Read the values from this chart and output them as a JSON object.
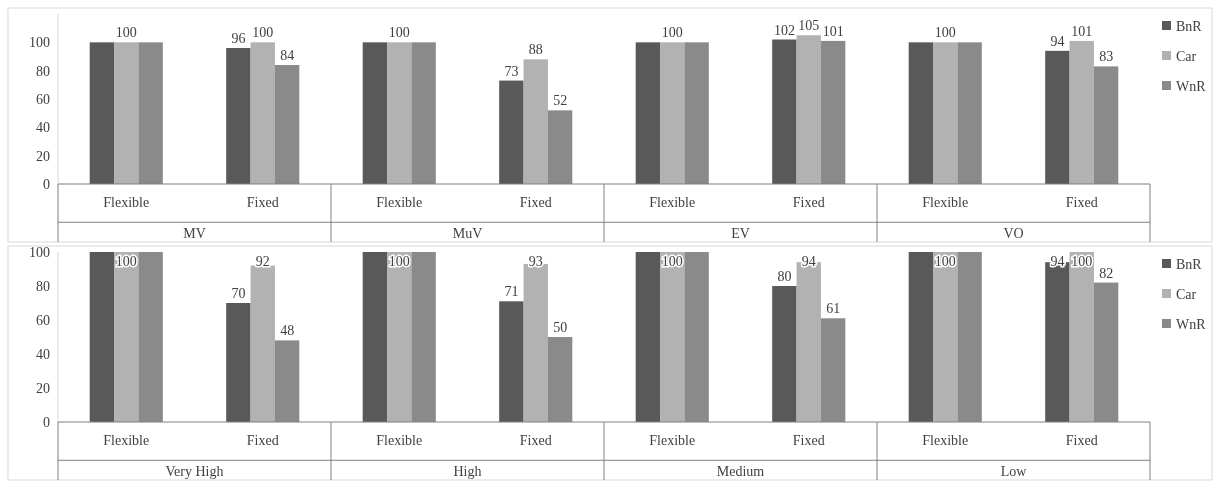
{
  "chart_data": [
    {
      "type": "bar",
      "categories": [
        "Flexible",
        "Fixed",
        "Flexible",
        "Fixed",
        "Flexible",
        "Fixed",
        "Flexible",
        "Fixed"
      ],
      "annotations": [
        "MV",
        "MuV",
        "EV",
        "VO"
      ],
      "ylim": [
        0,
        120
      ],
      "yticks": [
        0,
        20,
        40,
        60,
        80,
        100
      ],
      "legend": "right",
      "series": [
        {
          "name": "BnR",
          "color": "#595959",
          "values": [
            100,
            96,
            100,
            73,
            100,
            102,
            100,
            94
          ],
          "value_labels": [
            null,
            "96",
            null,
            "73",
            null,
            "102",
            null,
            "94"
          ]
        },
        {
          "name": "Car",
          "color": "#b2b2b2",
          "values": [
            100,
            100,
            100,
            88,
            100,
            105,
            100,
            101
          ],
          "value_labels": [
            "100",
            "100",
            "100",
            "88",
            "100",
            "105",
            "100",
            "101"
          ]
        },
        {
          "name": "WnR",
          "color": "#8a8a8a",
          "values": [
            100,
            84,
            100,
            52,
            100,
            101,
            100,
            83
          ],
          "value_labels": [
            null,
            "84",
            null,
            "52",
            null,
            "101",
            null,
            "83"
          ]
        }
      ]
    },
    {
      "type": "bar",
      "categories": [
        "Flexible",
        "Fixed",
        "Flexible",
        "Fixed",
        "Flexible",
        "Fixed",
        "Flexible",
        "Fixed"
      ],
      "annotations": [
        "Very High",
        "High",
        "Medium",
        "Low"
      ],
      "ylim": [
        0,
        100
      ],
      "yticks": [
        0,
        20,
        40,
        60,
        80,
        100
      ],
      "legend": "right",
      "series": [
        {
          "name": "BnR",
          "color": "#595959",
          "values": [
            100,
            70,
            100,
            71,
            100,
            80,
            100,
            94
          ],
          "value_labels": [
            null,
            "70",
            null,
            "71",
            null,
            "80",
            null,
            "94"
          ]
        },
        {
          "name": "Car",
          "color": "#b2b2b2",
          "values": [
            100,
            92,
            100,
            93,
            100,
            94,
            100,
            100
          ],
          "value_labels": [
            "100",
            "92",
            "100",
            "93",
            "100",
            "94",
            "100",
            "100"
          ]
        },
        {
          "name": "WnR",
          "color": "#8a8a8a",
          "values": [
            100,
            48,
            100,
            50,
            100,
            61,
            100,
            82
          ],
          "value_labels": [
            null,
            "48",
            null,
            "50",
            null,
            "61",
            null,
            "82"
          ]
        }
      ]
    }
  ]
}
